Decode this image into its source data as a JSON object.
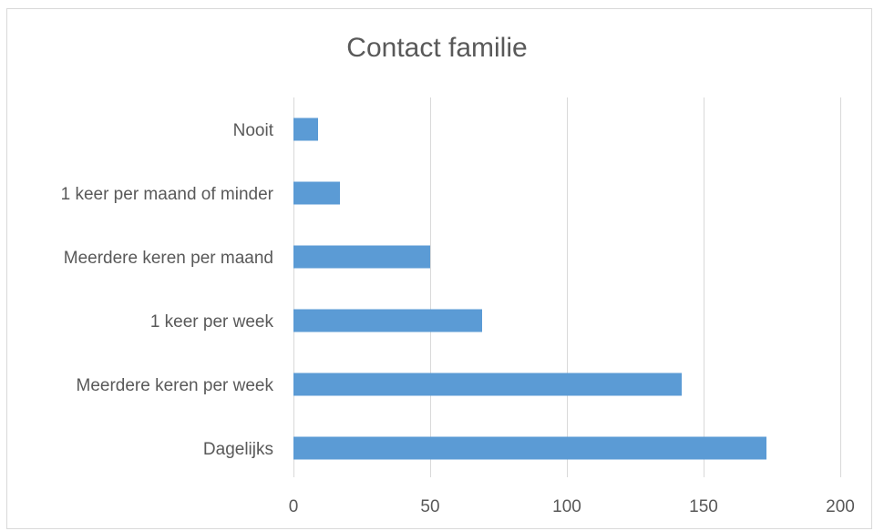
{
  "chart_data": {
    "type": "bar",
    "orientation": "horizontal",
    "title": "Contact familie",
    "categories": [
      "Nooit",
      "1 keer per maand of minder",
      "Meerdere keren per maand",
      "1 keer per week",
      "Meerdere keren per week",
      "Dagelijks"
    ],
    "values": [
      9,
      17,
      50,
      69,
      142,
      173
    ],
    "xlim": [
      0,
      200
    ],
    "xticks": [
      "0",
      "50",
      "100",
      "150",
      "200"
    ],
    "grid": "vertical",
    "bar_color": "#5b9bd5",
    "grid_color": "#d9d9d9",
    "text_color": "#595959"
  }
}
